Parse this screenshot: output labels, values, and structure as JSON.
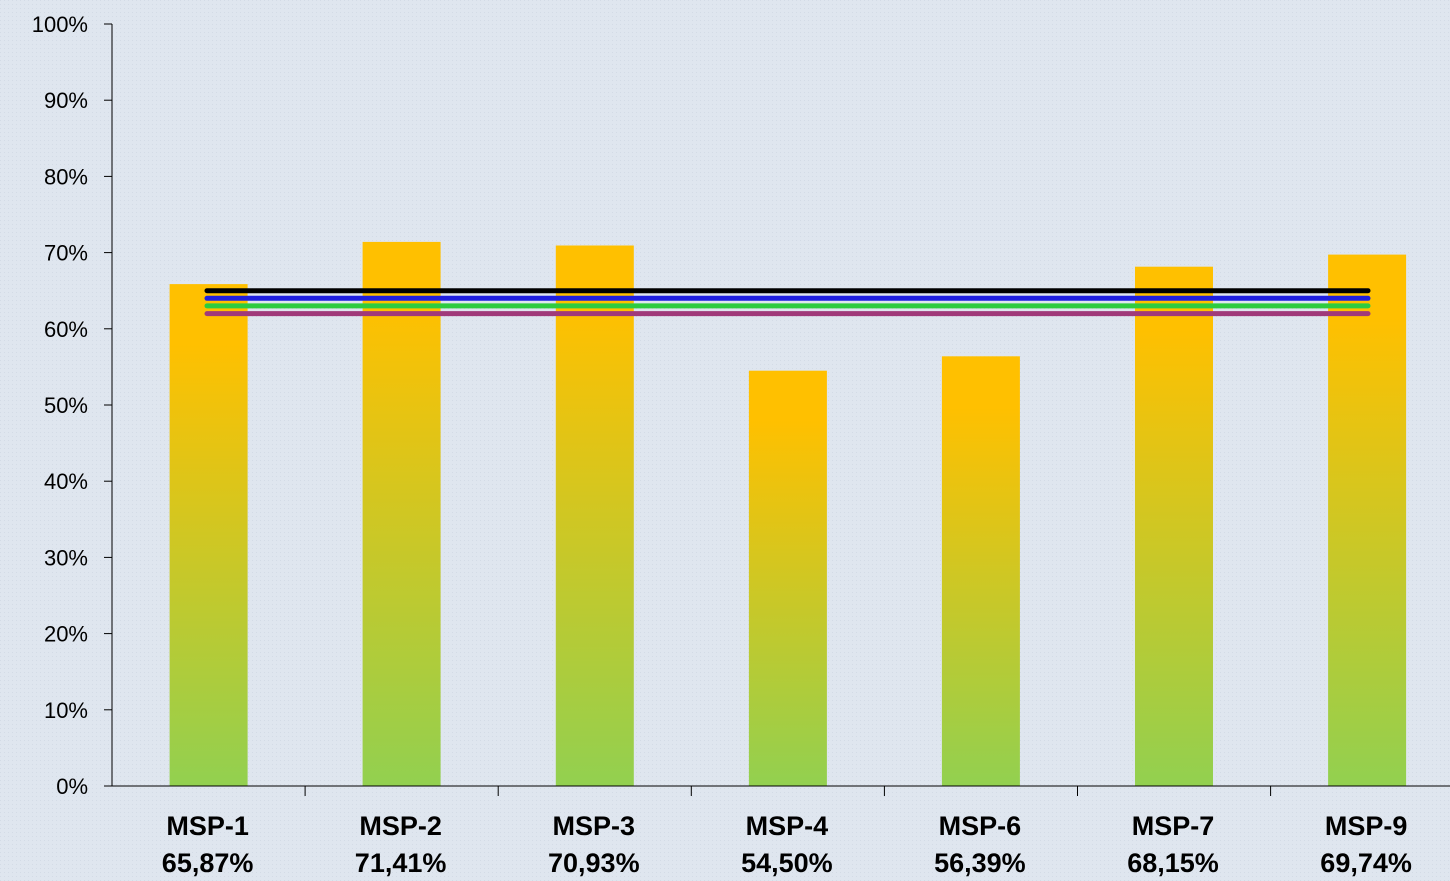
{
  "chart_data": {
    "type": "bar",
    "categories": [
      "MSP-1",
      "MSP-2",
      "MSP-3",
      "MSP-4",
      "MSP-6",
      "MSP-7",
      "MSP-9"
    ],
    "values": [
      65.87,
      71.41,
      70.93,
      54.5,
      56.39,
      68.15,
      69.74
    ],
    "value_labels": [
      "65,87%",
      "71,41%",
      "70,93%",
      "54,50%",
      "56,39%",
      "68,15%",
      "69,74%"
    ],
    "y_ticks": [
      "0%",
      "10%",
      "20%",
      "30%",
      "40%",
      "50%",
      "60%",
      "70%",
      "80%",
      "90%",
      "100%"
    ],
    "ylim": [
      0,
      100
    ],
    "title": "",
    "xlabel": "",
    "ylabel": "",
    "grid": false,
    "reference_lines": [
      {
        "value": 65.0,
        "color": "#000000"
      },
      {
        "value": 64.0,
        "color": "#1f1fe0"
      },
      {
        "value": 63.0,
        "color": "#2ecc40"
      },
      {
        "value": 62.0,
        "color": "#a03a7a"
      }
    ],
    "colors": {
      "background": "#dfe6ef",
      "bar_top": "#ffc000",
      "bar_bottom": "#92d050",
      "axis": "#000000"
    }
  }
}
